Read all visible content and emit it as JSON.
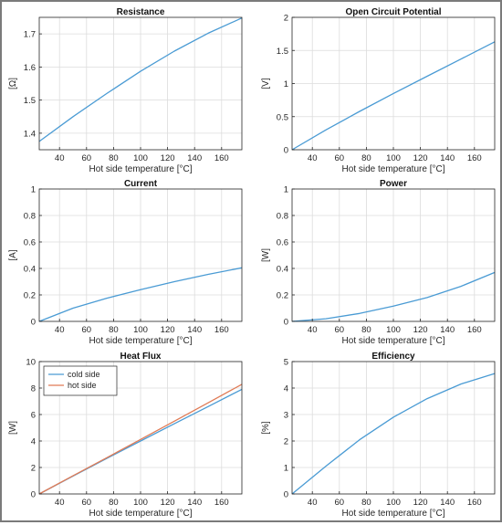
{
  "colors": {
    "series_blue": "#4a9bd4",
    "series_orange": "#e07b56",
    "axis": "#262626",
    "grid": "#dcdcdc",
    "text": "#262626"
  },
  "chart_data": [
    {
      "type": "line",
      "title": "Resistance",
      "xlabel": "Hot side temperature [°C]",
      "ylabel": "[Ω]",
      "xlim": [
        25,
        175
      ],
      "ylim": [
        1.35,
        1.75
      ],
      "xticks": [
        40,
        60,
        80,
        100,
        120,
        140,
        160
      ],
      "yticks": [
        1.4,
        1.5,
        1.6,
        1.7
      ],
      "grid": true,
      "series": [
        {
          "color": "#4a9bd4",
          "x": [
            25,
            50,
            75,
            100,
            125,
            150,
            175
          ],
          "y": [
            1.375,
            1.45,
            1.52,
            1.587,
            1.648,
            1.702,
            1.748
          ]
        }
      ]
    },
    {
      "type": "line",
      "title": "Open Circuit Potential",
      "xlabel": "Hot side temperature [°C]",
      "ylabel": "[V]",
      "xlim": [
        25,
        175
      ],
      "ylim": [
        0,
        2
      ],
      "xticks": [
        40,
        60,
        80,
        100,
        120,
        140,
        160
      ],
      "yticks": [
        0,
        0.5,
        1,
        1.5,
        2
      ],
      "grid": true,
      "series": [
        {
          "color": "#4a9bd4",
          "x": [
            25,
            50,
            75,
            100,
            125,
            150,
            175
          ],
          "y": [
            0,
            0.3,
            0.58,
            0.85,
            1.11,
            1.37,
            1.63
          ]
        }
      ]
    },
    {
      "type": "line",
      "title": "Current",
      "xlabel": "Hot side temperature [°C]",
      "ylabel": "[A]",
      "xlim": [
        25,
        175
      ],
      "ylim": [
        0,
        1
      ],
      "xticks": [
        40,
        60,
        80,
        100,
        120,
        140,
        160
      ],
      "yticks": [
        0,
        0.2,
        0.4,
        0.6,
        0.8,
        1
      ],
      "grid": true,
      "series": [
        {
          "color": "#4a9bd4",
          "x": [
            25,
            50,
            75,
            100,
            125,
            150,
            175
          ],
          "y": [
            0,
            0.1,
            0.175,
            0.24,
            0.3,
            0.355,
            0.405
          ]
        }
      ]
    },
    {
      "type": "line",
      "title": "Power",
      "xlabel": "Hot side temperature [°C]",
      "ylabel": "[W]",
      "xlim": [
        25,
        175
      ],
      "ylim": [
        0,
        1
      ],
      "xticks": [
        40,
        60,
        80,
        100,
        120,
        140,
        160
      ],
      "yticks": [
        0,
        0.2,
        0.4,
        0.6,
        0.8,
        1
      ],
      "grid": true,
      "series": [
        {
          "color": "#4a9bd4",
          "x": [
            25,
            50,
            75,
            100,
            125,
            150,
            175
          ],
          "y": [
            0,
            0.02,
            0.06,
            0.115,
            0.18,
            0.265,
            0.37
          ]
        }
      ]
    },
    {
      "type": "line",
      "title": "Heat Flux",
      "xlabel": "Hot side temperature [°C]",
      "ylabel": "[W]",
      "xlim": [
        25,
        175
      ],
      "ylim": [
        0,
        10
      ],
      "xticks": [
        40,
        60,
        80,
        100,
        120,
        140,
        160
      ],
      "yticks": [
        0,
        2,
        4,
        6,
        8,
        10
      ],
      "grid": true,
      "legend": "top-left",
      "series": [
        {
          "name": "cold side",
          "color": "#4a9bd4",
          "x": [
            25,
            50,
            75,
            100,
            125,
            150,
            175
          ],
          "y": [
            0,
            1.35,
            2.68,
            4.0,
            5.3,
            6.6,
            7.9
          ]
        },
        {
          "name": "hot side",
          "color": "#e07b56",
          "x": [
            25,
            50,
            75,
            100,
            125,
            150,
            175
          ],
          "y": [
            0,
            1.37,
            2.74,
            4.12,
            5.5,
            6.88,
            8.28
          ]
        }
      ]
    },
    {
      "type": "line",
      "title": "Efficiency",
      "xlabel": "Hot side temperature [°C]",
      "ylabel": "[%]",
      "xlim": [
        25,
        175
      ],
      "ylim": [
        0,
        5
      ],
      "xticks": [
        40,
        60,
        80,
        100,
        120,
        140,
        160
      ],
      "yticks": [
        0,
        1,
        2,
        3,
        4,
        5
      ],
      "grid": true,
      "series": [
        {
          "color": "#4a9bd4",
          "x": [
            25,
            50,
            75,
            100,
            125,
            150,
            175
          ],
          "y": [
            0,
            1.05,
            2.05,
            2.9,
            3.6,
            4.15,
            4.55
          ]
        }
      ]
    }
  ]
}
